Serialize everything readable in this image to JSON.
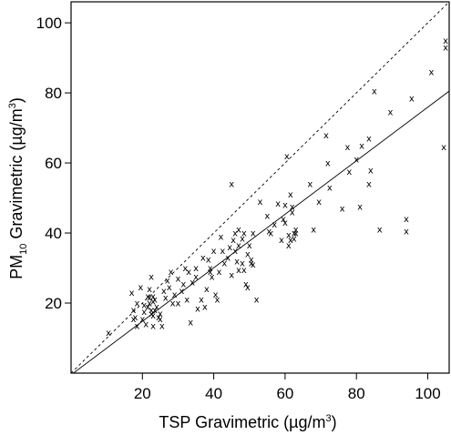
{
  "chart_data": {
    "type": "scatter",
    "xlabel": {
      "main": "TSP Gravimetric (µg/m",
      "sup": "3",
      "tail": ")"
    },
    "ylabel": {
      "pre": "PM",
      "sub": "10",
      "main": " Gravimetric  (µg/m",
      "sup": "3",
      "tail": ")"
    },
    "xlim": [
      0,
      106
    ],
    "ylim": [
      0,
      106
    ],
    "xticks": [
      20,
      40,
      60,
      80,
      100
    ],
    "yticks": [
      20,
      40,
      60,
      80,
      100
    ],
    "marker": "x",
    "grid": false,
    "reference_line": {
      "style": "dashed",
      "slope": 1,
      "intercept": 0
    },
    "fit_line": {
      "style": "solid",
      "points": [
        [
          0,
          -0.5
        ],
        [
          106,
          80.5
        ]
      ]
    },
    "points": [
      [
        10.5,
        11.5
      ],
      [
        17,
        23
      ],
      [
        17.5,
        18
      ],
      [
        17.5,
        15.5
      ],
      [
        18,
        16
      ],
      [
        18.5,
        20
      ],
      [
        18.5,
        13.5
      ],
      [
        19.5,
        24.5
      ],
      [
        20,
        15.5
      ],
      [
        20.5,
        19.5
      ],
      [
        20.5,
        17.5
      ],
      [
        21,
        14
      ],
      [
        21.5,
        22
      ],
      [
        21.5,
        19
      ],
      [
        22,
        21.5
      ],
      [
        22,
        24
      ],
      [
        22,
        20
      ],
      [
        22.5,
        18
      ],
      [
        22.5,
        17
      ],
      [
        22.5,
        27.5
      ],
      [
        23,
        22
      ],
      [
        23,
        20.5
      ],
      [
        23,
        16.5
      ],
      [
        23,
        13.5
      ],
      [
        23.5,
        21
      ],
      [
        23.5,
        18
      ],
      [
        24,
        19
      ],
      [
        24.5,
        16
      ],
      [
        25,
        17
      ],
      [
        25,
        15.5
      ],
      [
        25.5,
        13.5
      ],
      [
        26,
        23.5
      ],
      [
        26.5,
        21.5
      ],
      [
        27,
        26.5
      ],
      [
        27.5,
        24.5
      ],
      [
        28,
        29
      ],
      [
        28.5,
        20
      ],
      [
        29,
        22.5
      ],
      [
        30,
        27
      ],
      [
        30,
        20
      ],
      [
        31,
        23.5
      ],
      [
        31.5,
        25.5
      ],
      [
        32,
        30
      ],
      [
        32.5,
        21
      ],
      [
        33,
        29
      ],
      [
        33.5,
        14.5
      ],
      [
        34,
        26
      ],
      [
        35,
        30
      ],
      [
        35,
        27.5
      ],
      [
        35.5,
        18.5
      ],
      [
        36.5,
        21
      ],
      [
        37,
        33
      ],
      [
        37.5,
        19
      ],
      [
        38,
        24
      ],
      [
        38.5,
        32.5
      ],
      [
        39,
        30
      ],
      [
        39,
        29
      ],
      [
        39.5,
        27.5
      ],
      [
        40,
        35
      ],
      [
        40.5,
        22.5
      ],
      [
        41,
        21
      ],
      [
        41.5,
        29
      ],
      [
        42,
        39
      ],
      [
        42.5,
        35
      ],
      [
        43,
        31.5
      ],
      [
        44,
        33
      ],
      [
        44.5,
        36
      ],
      [
        45,
        54
      ],
      [
        45,
        28
      ],
      [
        45.5,
        38
      ],
      [
        46,
        40
      ],
      [
        46,
        35
      ],
      [
        46.5,
        32
      ],
      [
        47,
        41
      ],
      [
        47,
        36.5
      ],
      [
        47,
        29.5
      ],
      [
        48,
        38.5
      ],
      [
        48,
        31.5
      ],
      [
        48.5,
        40
      ],
      [
        48.5,
        29.5
      ],
      [
        49,
        25.5
      ],
      [
        49.5,
        34
      ],
      [
        49.5,
        24.5
      ],
      [
        50,
        36.5
      ],
      [
        50.5,
        32.5
      ],
      [
        50.5,
        31.5
      ],
      [
        51,
        31
      ],
      [
        51,
        40
      ],
      [
        52,
        21
      ],
      [
        53,
        49
      ],
      [
        55,
        45
      ],
      [
        55.5,
        40.5
      ],
      [
        56,
        40
      ],
      [
        57,
        42.5
      ],
      [
        58,
        48.5
      ],
      [
        59,
        38
      ],
      [
        59.5,
        44
      ],
      [
        60,
        48
      ],
      [
        60,
        43
      ],
      [
        60.5,
        62
      ],
      [
        61,
        39.5
      ],
      [
        61,
        36.5
      ],
      [
        61.5,
        38
      ],
      [
        61.5,
        51
      ],
      [
        62,
        47.5
      ],
      [
        62,
        46
      ],
      [
        62.5,
        40
      ],
      [
        62.5,
        38.5
      ],
      [
        63,
        41
      ],
      [
        63,
        40
      ],
      [
        67,
        54
      ],
      [
        68,
        41
      ],
      [
        69.5,
        49
      ],
      [
        71.5,
        68
      ],
      [
        72,
        60
      ],
      [
        72.5,
        53
      ],
      [
        76,
        47
      ],
      [
        77.5,
        64.5
      ],
      [
        78,
        57.5
      ],
      [
        80,
        61
      ],
      [
        81,
        47.5
      ],
      [
        81.5,
        65
      ],
      [
        83.5,
        67
      ],
      [
        83.5,
        54
      ],
      [
        84,
        58
      ],
      [
        85,
        80.5
      ],
      [
        86.5,
        41
      ],
      [
        89.5,
        74.5
      ],
      [
        94,
        44
      ],
      [
        94,
        40.5
      ],
      [
        95.5,
        78.5
      ],
      [
        101,
        86
      ],
      [
        104.5,
        64.5
      ],
      [
        105,
        93
      ],
      [
        105,
        95
      ]
    ]
  }
}
